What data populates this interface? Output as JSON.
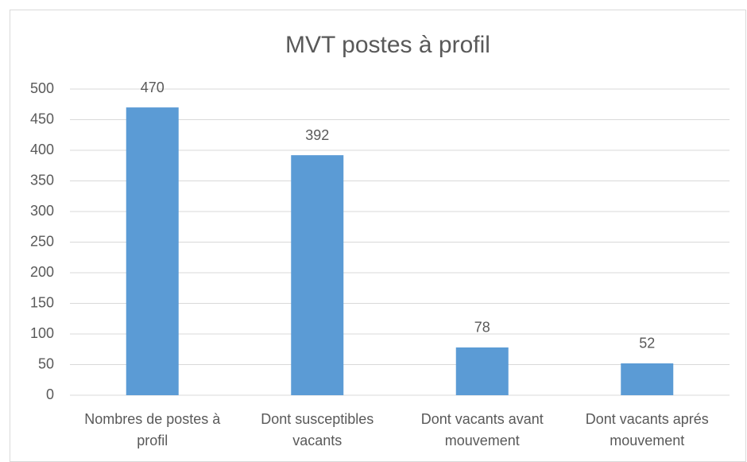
{
  "chart_data": {
    "type": "bar",
    "title": "MVT postes à profil",
    "categories": [
      "Nombres de postes à profil",
      "Dont susceptibles vacants",
      "Dont vacants avant mouvement",
      "Dont vacants aprés mouvement"
    ],
    "values": [
      470,
      392,
      78,
      52
    ],
    "color": "#5b9bd5",
    "ylim": [
      0,
      500
    ],
    "yticks": [
      0,
      50,
      100,
      150,
      200,
      250,
      300,
      350,
      400,
      450,
      500
    ],
    "grid": true
  }
}
